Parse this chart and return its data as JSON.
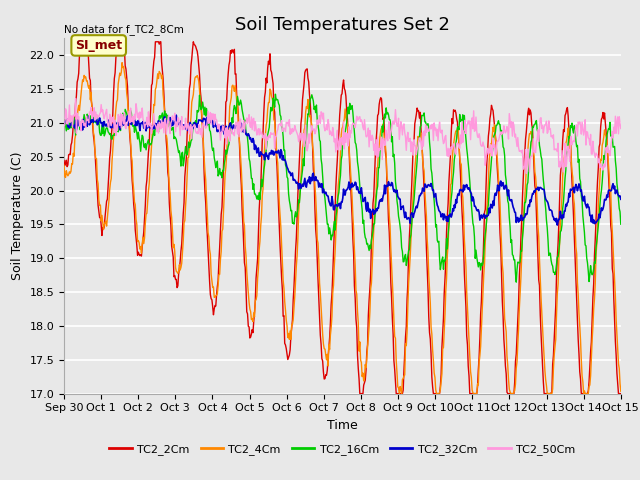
{
  "title": "Soil Temperatures Set 2",
  "xlabel": "Time",
  "ylabel": "Soil Temperature (C)",
  "note": "No data for f_TC2_8Cm",
  "si_met_label": "SI_met",
  "ylim": [
    17.0,
    22.25
  ],
  "yticks": [
    17.0,
    17.5,
    18.0,
    18.5,
    19.0,
    19.5,
    20.0,
    20.5,
    21.0,
    21.5,
    22.0
  ],
  "xtick_labels": [
    "Sep 30",
    "Oct 1",
    "Oct 2",
    "Oct 3",
    "Oct 4",
    "Oct 5",
    "Oct 6",
    "Oct 7",
    "Oct 8",
    "Oct 9",
    "Oct 10",
    "Oct 11",
    "Oct 12",
    "Oct 13",
    "Oct 14",
    "Oct 15"
  ],
  "series": [
    {
      "label": "TC2_2Cm",
      "color": "#dd0000",
      "lw": 1.0
    },
    {
      "label": "TC2_4Cm",
      "color": "#ff8800",
      "lw": 1.0
    },
    {
      "label": "TC2_16Cm",
      "color": "#00cc00",
      "lw": 1.0
    },
    {
      "label": "TC2_32Cm",
      "color": "#0000cc",
      "lw": 1.2
    },
    {
      "label": "TC2_50Cm",
      "color": "#ff99dd",
      "lw": 1.0
    }
  ],
  "bg_color": "#e8e8e8",
  "plot_bg_color": "#e8e8e8",
  "grid_color": "#ffffff",
  "title_fontsize": 13,
  "axis_label_fontsize": 9,
  "tick_fontsize": 8
}
